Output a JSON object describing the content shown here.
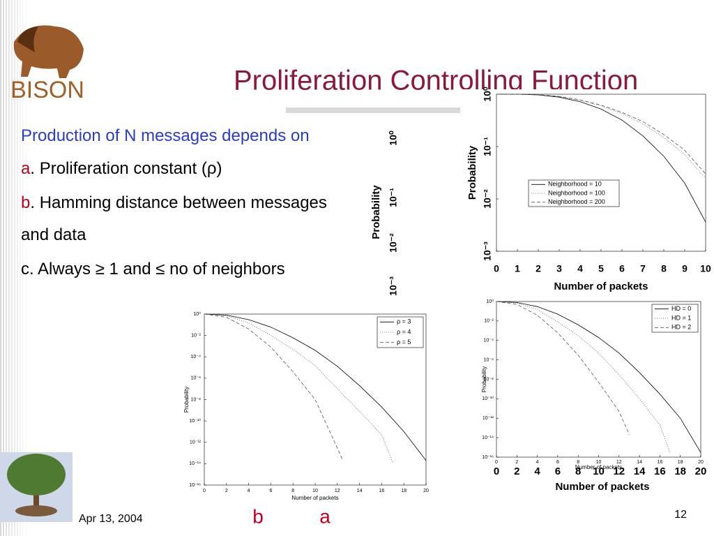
{
  "slide": {
    "logo": "BISON",
    "title": "Proliferation Controlling Function",
    "bullets": [
      {
        "text": "Production of N messages depends on"
      },
      {
        "marker": "a",
        "text": ". Proliferation constant (ρ)"
      },
      {
        "marker": "b",
        "text": ". Hamming distance between messages"
      },
      {
        "text": "and data"
      },
      {
        "text": "c. Always ≥ 1 and ≤ no of neighbors"
      }
    ],
    "date": "Apr 13, 2004",
    "page_number": "12",
    "captions": [
      "b",
      "a"
    ],
    "ghost_yticks": [
      "10⁰",
      "10⁻¹",
      "10⁻²",
      "10⁻³"
    ],
    "ghost_ylabel": "Probability",
    "overlay_xticks": [
      0,
      2,
      4,
      6,
      8,
      10,
      12,
      14,
      16,
      18,
      20
    ],
    "overlay_xlabel": "Number of packets"
  },
  "chart_data": [
    {
      "type": "line",
      "log_y": true,
      "xlabel": "Number of packets",
      "ylabel": "Probability",
      "legend": "center",
      "xlim": [
        0,
        10
      ],
      "xticks": [
        0,
        1,
        2,
        3,
        4,
        5,
        6,
        7,
        8,
        9,
        10
      ],
      "ylim": [
        0.001,
        1
      ],
      "yticks": [
        {
          "value": 1,
          "label": "10⁰"
        },
        {
          "value": 0.1,
          "label": "10⁻¹"
        },
        {
          "value": 0.01,
          "label": "10⁻²"
        },
        {
          "value": 0.001,
          "label": "10⁻³"
        }
      ],
      "series": [
        {
          "name": "Neighborhood = 10",
          "color": "#000000",
          "style": "solid",
          "x": [
            0,
            1,
            2,
            3,
            4,
            5,
            6,
            7,
            8,
            9,
            10
          ],
          "values": [
            1,
            1,
            0.97,
            0.88,
            0.72,
            0.52,
            0.32,
            0.16,
            0.065,
            0.02,
            0.0036
          ]
        },
        {
          "name": "Neighborhood = 100",
          "color": "#555555",
          "style": "dotted",
          "x": [
            0,
            1,
            2,
            3,
            4,
            5,
            6,
            7,
            8,
            9,
            10
          ],
          "values": [
            1,
            1,
            0.98,
            0.9,
            0.76,
            0.6,
            0.43,
            0.27,
            0.15,
            0.07,
            0.025
          ]
        },
        {
          "name": "Neighborhood = 200",
          "color": "#555555",
          "style": "dashed",
          "x": [
            0,
            1,
            2,
            3,
            4,
            5,
            6,
            7,
            8,
            9,
            10
          ],
          "values": [
            1,
            1,
            0.98,
            0.91,
            0.78,
            0.62,
            0.45,
            0.3,
            0.17,
            0.085,
            0.03
          ]
        }
      ]
    },
    {
      "type": "line",
      "log_y": true,
      "xlabel": "Number of packets",
      "ylabel": "Probability",
      "legend": "upper right",
      "xlim": [
        0,
        20
      ],
      "xticks": [
        0,
        2,
        4,
        6,
        8,
        10,
        12,
        14,
        16,
        18,
        20
      ],
      "ylim": [
        1e-16,
        1
      ],
      "yticks": [
        {
          "value": 1,
          "label": "10⁰"
        },
        {
          "value": 0.01,
          "label": "10⁻²"
        },
        {
          "value": 0.0001,
          "label": "10⁻⁴"
        },
        {
          "value": 1e-06,
          "label": "10⁻⁶"
        },
        {
          "value": 1e-08,
          "label": "10⁻⁸"
        },
        {
          "value": 1e-10,
          "label": "10⁻¹⁰"
        },
        {
          "value": 1e-12,
          "label": "10⁻¹²"
        },
        {
          "value": 1e-14,
          "label": "10⁻¹⁴"
        },
        {
          "value": 1e-16,
          "label": "10⁻¹⁶"
        }
      ],
      "series": [
        {
          "name": "ρ = 3",
          "color": "#000000",
          "style": "solid",
          "x": [
            0,
            2,
            4,
            6,
            8,
            10,
            12,
            14,
            16,
            18,
            20
          ],
          "values": [
            1,
            0.8,
            0.3,
            0.06,
            0.006,
            0.0004,
            1.3e-05,
            2e-07,
            2e-09,
            1e-11,
            2e-14
          ]
        },
        {
          "name": "ρ = 4",
          "color": "#555555",
          "style": "dotted",
          "x": [
            0,
            2,
            4,
            6,
            8,
            10,
            12,
            14,
            16,
            17
          ],
          "values": [
            1,
            0.7,
            0.15,
            0.01,
            0.0005,
            1.5e-05,
            1e-07,
            8e-10,
            5e-12,
            1.2e-14
          ]
        },
        {
          "name": "ρ = 5",
          "color": "#555555",
          "style": "dashed",
          "x": [
            0,
            2,
            4,
            6,
            8,
            10,
            12.5
          ],
          "values": [
            1,
            0.5,
            0.04,
            0.0008,
            4e-06,
            1e-08,
            2e-14
          ]
        }
      ]
    },
    {
      "type": "line",
      "log_y": true,
      "xlabel": "Number of packets",
      "ylabel": "Probability",
      "legend": "upper right",
      "xlim": [
        0,
        20
      ],
      "xticks": [
        0,
        2,
        4,
        6,
        8,
        10,
        12,
        14,
        16,
        18,
        20
      ],
      "ylim": [
        1e-16,
        1
      ],
      "yticks": [
        {
          "value": 1,
          "label": "10⁰"
        },
        {
          "value": 0.01,
          "label": "10⁻²"
        },
        {
          "value": 0.0001,
          "label": "10⁻⁴"
        },
        {
          "value": 1e-06,
          "label": "10⁻⁶"
        },
        {
          "value": 1e-08,
          "label": "10⁻⁸"
        },
        {
          "value": 1e-10,
          "label": "10⁻¹⁰"
        },
        {
          "value": 1e-12,
          "label": "10⁻¹²"
        },
        {
          "value": 1e-14,
          "label": "10⁻¹⁴"
        },
        {
          "value": 1e-16,
          "label": "10⁻¹⁶"
        }
      ],
      "series": [
        {
          "name": "HD = 0",
          "color": "#000000",
          "style": "solid",
          "x": [
            0,
            2,
            4,
            6,
            8,
            10,
            12,
            14,
            16,
            18,
            20
          ],
          "values": [
            1,
            0.8,
            0.3,
            0.05,
            0.004,
            0.0002,
            5e-06,
            5e-08,
            3e-10,
            1e-12,
            3e-16
          ]
        },
        {
          "name": "HD = 1",
          "color": "#555555",
          "style": "dotted",
          "x": [
            0,
            2,
            4,
            6,
            8,
            10,
            12,
            14,
            16,
            17
          ],
          "values": [
            1,
            0.7,
            0.15,
            0.008,
            0.0003,
            5e-06,
            3e-08,
            1e-10,
            2e-13,
            3e-16
          ]
        },
        {
          "name": "HD = 2",
          "color": "#555555",
          "style": "dashed",
          "x": [
            0,
            2,
            4,
            6,
            8,
            10,
            12,
            13
          ],
          "values": [
            1,
            0.5,
            0.04,
            0.0006,
            3e-06,
            5e-09,
            5e-12,
            2e-14
          ]
        }
      ]
    }
  ]
}
